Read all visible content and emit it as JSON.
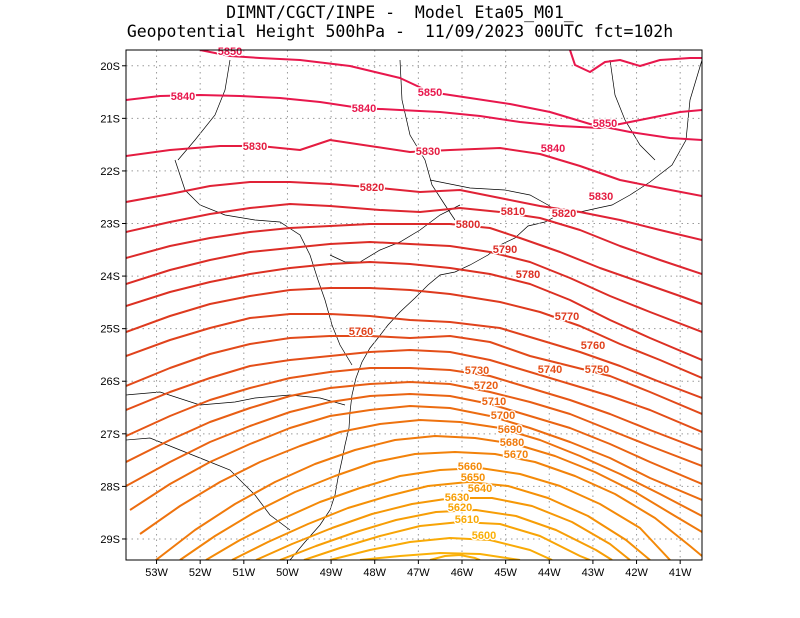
{
  "title": {
    "line1": "DIMNT/CGCT/INPE -  Model Eta05_M01_",
    "line2": "Geopotential Height 500hPa -  11/09/2023 00UTC fct=102h"
  },
  "map": {
    "lon_range": [
      -53.7,
      -40.5
    ],
    "lat_range": [
      -29.4,
      -19.7
    ],
    "grid": "dotted",
    "lon_ticks": [
      "53W",
      "52W",
      "51W",
      "50W",
      "49W",
      "48W",
      "47W",
      "46W",
      "45W",
      "44W",
      "43W",
      "42W",
      "41W"
    ],
    "lat_ticks": [
      "20S",
      "21S",
      "22S",
      "23S",
      "24S",
      "25S",
      "26S",
      "27S",
      "28S",
      "29S"
    ],
    "contour_labels": [
      {
        "text": "5850",
        "color": "#e8174c"
      },
      {
        "text": "5850",
        "color": "#e8174c"
      },
      {
        "text": "5850",
        "color": "#e8174c"
      },
      {
        "text": "5840",
        "color": "#e8174c"
      },
      {
        "text": "5840",
        "color": "#e8174c"
      },
      {
        "text": "5840",
        "color": "#e8174c"
      },
      {
        "text": "5830",
        "color": "#e41c40"
      },
      {
        "text": "5830",
        "color": "#e41c40"
      },
      {
        "text": "5830",
        "color": "#e41c40"
      },
      {
        "text": "5820",
        "color": "#e02236"
      },
      {
        "text": "5820",
        "color": "#e02236"
      },
      {
        "text": "5810",
        "color": "#de2630"
      },
      {
        "text": "5800",
        "color": "#dc2a2a"
      },
      {
        "text": "5790",
        "color": "#dc2d26"
      },
      {
        "text": "5780",
        "color": "#dc3022"
      },
      {
        "text": "5770",
        "color": "#de3a1e"
      },
      {
        "text": "5760",
        "color": "#e0421c"
      },
      {
        "text": "5760",
        "color": "#e0421c"
      },
      {
        "text": "5750",
        "color": "#e24a1a"
      },
      {
        "text": "5740",
        "color": "#e44e18"
      },
      {
        "text": "5730",
        "color": "#e65616"
      },
      {
        "text": "5720",
        "color": "#e85e14"
      },
      {
        "text": "5710",
        "color": "#ea6412"
      },
      {
        "text": "5700",
        "color": "#ec6c10"
      },
      {
        "text": "5690",
        "color": "#ee720e"
      },
      {
        "text": "5680",
        "color": "#f07a0c"
      },
      {
        "text": "5670",
        "color": "#f2820a"
      },
      {
        "text": "5660",
        "color": "#f48a08"
      },
      {
        "text": "5650",
        "color": "#f59006"
      },
      {
        "text": "5640",
        "color": "#f69806"
      },
      {
        "text": "5630",
        "color": "#f79e06"
      },
      {
        "text": "5620",
        "color": "#f8a406"
      },
      {
        "text": "5610",
        "color": "#f9aa06"
      },
      {
        "text": "5600",
        "color": "#fab008"
      }
    ],
    "contour_colors": {
      "high": "#e8174c",
      "mid": "#dc2a2a",
      "low": "#f5a20a",
      "coastline": "#000000"
    }
  }
}
